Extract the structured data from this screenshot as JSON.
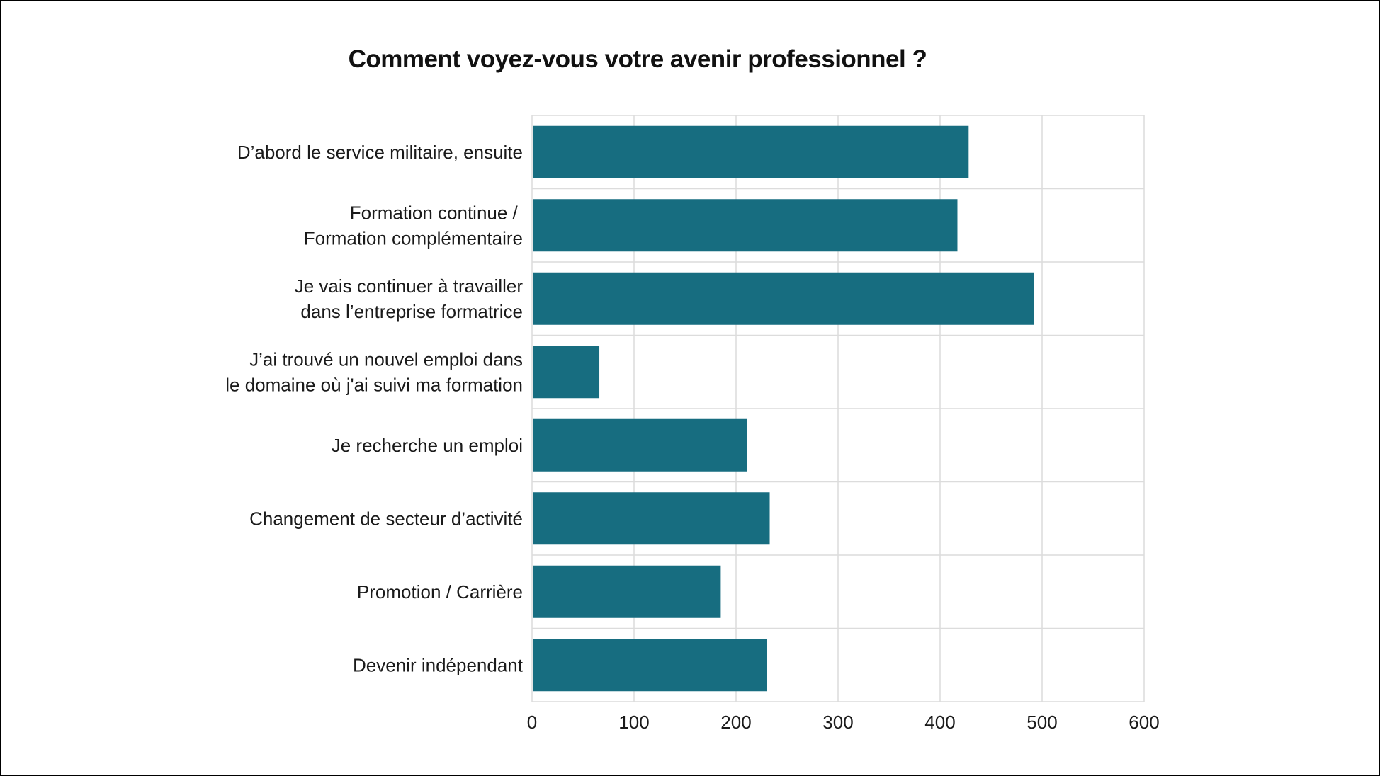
{
  "chart_data": {
    "type": "bar",
    "orientation": "horizontal",
    "title": "Comment voyez-vous votre avenir professionnel ?",
    "xlabel": "",
    "ylabel": "",
    "categories": [
      [
        "D’abord le service militaire, ensuite"
      ],
      [
        "Formation continue / ",
        "Formation complémentaire"
      ],
      [
        "Je vais continuer à travailler",
        "dans l’entreprise formatrice"
      ],
      [
        "J’ai trouvé un nouvel emploi dans",
        "le domaine où j'ai suivi ma formation"
      ],
      [
        "Je recherche un emploi"
      ],
      [
        "Changement de secteur d’activité"
      ],
      [
        "Promotion / Carrière"
      ],
      [
        "Devenir indépendant"
      ]
    ],
    "values": [
      428,
      417,
      492,
      66,
      211,
      233,
      185,
      230
    ],
    "xlim": [
      0,
      600
    ],
    "xticks": [
      0,
      100,
      200,
      300,
      400,
      500,
      600
    ],
    "grid": true,
    "legend": "none",
    "bar_color": "#176d80",
    "grid_color": "#dcdcdc"
  }
}
